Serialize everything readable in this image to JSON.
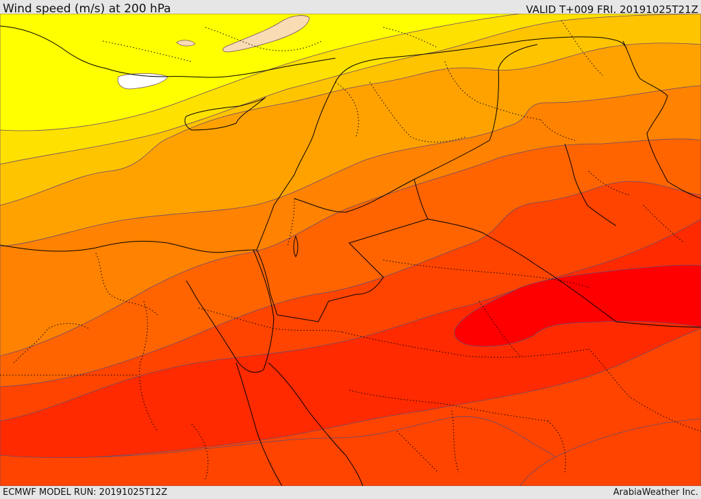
{
  "header": {
    "title": "Wind speed (m/s) at 200 hPa",
    "valid_time": "VALID T+009 FRI. 20191025T21Z"
  },
  "footer": {
    "model_run": "ECMWF MODEL RUN: 20191025T12Z",
    "credit": "ArabiaWeather Inc."
  },
  "map": {
    "palette": {
      "white": "#ffffff",
      "peach": "#fadcb4",
      "yellow": "#ffff00",
      "gold": "#ffe100",
      "amber": "#ffc400",
      "orange_light": "#ffa200",
      "orange": "#ff8200",
      "orange_dark": "#ff6400",
      "red_orange": "#ff4400",
      "red_light": "#ff2a00",
      "red": "#ff0000"
    },
    "contour_color": "#6b4a6b",
    "border_color": "#000000"
  }
}
